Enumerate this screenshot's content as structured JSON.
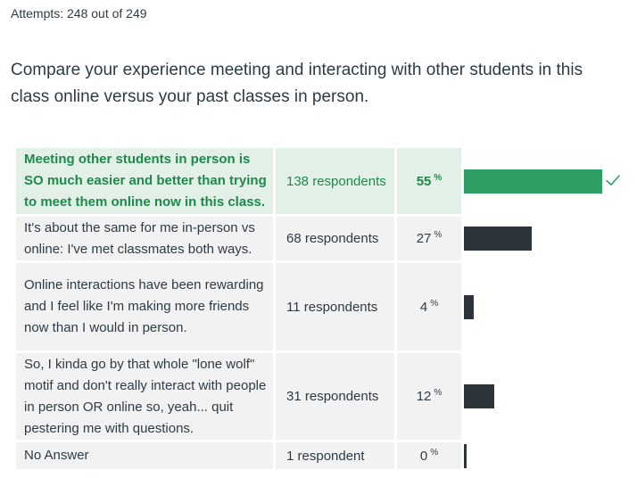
{
  "attempts_label": "Attempts: 248 out of 249",
  "question": "Compare your experience meeting and interacting with other students in this class online versus your past classes in person.",
  "answers": [
    {
      "text": "Meeting other students in person is SO much easier and better than trying to meet them online now in this class.",
      "respondents": "138 respondents",
      "percent": "55",
      "percent_sign": "%",
      "fraction": 0.55,
      "correct": true
    },
    {
      "text": "It's about the same for me in-person vs online: I've met classmates both ways.",
      "respondents": "68 respondents",
      "percent": "27",
      "percent_sign": "%",
      "fraction": 0.27,
      "correct": false
    },
    {
      "text": "Online interactions have been rewarding and I feel like I'm making more friends now than I would in person.",
      "respondents": "11 respondents",
      "percent": "4",
      "percent_sign": "%",
      "fraction": 0.04,
      "correct": false
    },
    {
      "text": "So, I kinda go by that whole \"lone wolf\" motif and don't really interact with people in person OR online so, yeah... quit pestering me with questions.",
      "respondents": "31 respondents",
      "percent": "12",
      "percent_sign": "%",
      "fraction": 0.12,
      "correct": false
    },
    {
      "text": "No Answer",
      "respondents": "1 respondent",
      "percent": "0",
      "percent_sign": "%",
      "fraction": 0.004,
      "correct": false
    }
  ],
  "colors": {
    "correct_bar": "#2ea065",
    "bar": "#2d333b",
    "correct_text": "#1e8a4a",
    "correct_bg": "#e3f0e8",
    "row_bg": "#f2f2f2"
  },
  "icons": {
    "correct_marker": "checkmark-icon"
  }
}
